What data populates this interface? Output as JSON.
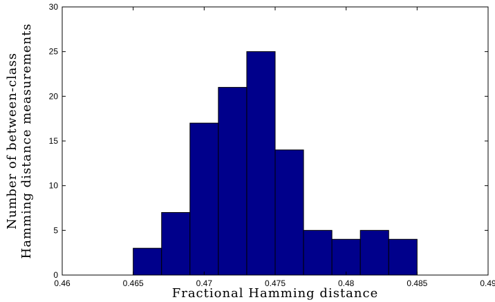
{
  "chart_data": {
    "type": "bar",
    "xlabel": "Fractional Hamming distance",
    "ylabel_lines": [
      "Number of between-class",
      "Hamming distance measurements"
    ],
    "xlim": [
      0.46,
      0.49
    ],
    "ylim": [
      0,
      30
    ],
    "x_ticks": [
      0.46,
      0.465,
      0.47,
      0.475,
      0.48,
      0.485,
      0.49
    ],
    "x_tick_labels": [
      "0.46",
      "0.465",
      "0.47",
      "0.475",
      "0.48",
      "0.485",
      "0.49"
    ],
    "y_ticks": [
      0,
      5,
      10,
      15,
      20,
      25,
      30
    ],
    "y_tick_labels": [
      "0",
      "5",
      "10",
      "15",
      "20",
      "25",
      "30"
    ],
    "bin_edges": [
      0.465,
      0.467,
      0.469,
      0.471,
      0.473,
      0.475,
      0.477,
      0.479,
      0.481,
      0.483,
      0.485
    ],
    "values": [
      3,
      7,
      17,
      21,
      25,
      14,
      5,
      4,
      5,
      4
    ],
    "grid": false,
    "bar_color": "#00008b",
    "edge_color": "#000000"
  }
}
